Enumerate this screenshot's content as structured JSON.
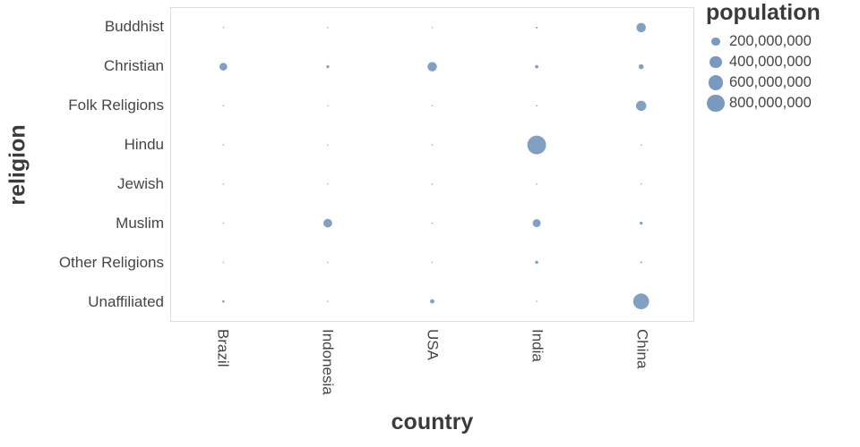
{
  "chart_data": {
    "type": "scatter",
    "subtype": "bubble-punchcard",
    "xlabel": "country",
    "ylabel": "religion",
    "x_categories": [
      "Brazil",
      "Indonesia",
      "USA",
      "India",
      "China"
    ],
    "y_categories": [
      "Buddhist",
      "Christian",
      "Folk Religions",
      "Hindu",
      "Jewish",
      "Muslim",
      "Other Religions",
      "Unaffiliated"
    ],
    "size_legend": {
      "title": "population",
      "values": [
        200000000,
        400000000,
        600000000,
        800000000
      ],
      "labels": [
        "200,000,000",
        "400,000,000",
        "600,000,000",
        "800,000,000"
      ]
    },
    "colors": {
      "point": "#4c78a8",
      "point_opacity": 0.7,
      "axis_text": "#454545",
      "title_text": "#3b3b3b",
      "plot_border": "#dddddd"
    },
    "points": [
      {
        "country": "Brazil",
        "religion": "Buddhist",
        "population": 250000
      },
      {
        "country": "Indonesia",
        "religion": "Buddhist",
        "population": 1720000
      },
      {
        "country": "USA",
        "religion": "Buddhist",
        "population": 3570000
      },
      {
        "country": "India",
        "religion": "Buddhist",
        "population": 9250000
      },
      {
        "country": "China",
        "religion": "Buddhist",
        "population": 244130000
      },
      {
        "country": "Brazil",
        "religion": "Christian",
        "population": 167000000
      },
      {
        "country": "Indonesia",
        "religion": "Christian",
        "population": 23660000
      },
      {
        "country": "USA",
        "religion": "Christian",
        "population": 243060000
      },
      {
        "country": "India",
        "religion": "Christian",
        "population": 31130000
      },
      {
        "country": "China",
        "religion": "Christian",
        "population": 68410000
      },
      {
        "country": "Brazil",
        "religion": "Folk Religions",
        "population": 5540000
      },
      {
        "country": "Indonesia",
        "religion": "Folk Religions",
        "population": 750000
      },
      {
        "country": "USA",
        "religion": "Folk Religions",
        "population": 630000
      },
      {
        "country": "India",
        "religion": "Folk Religions",
        "population": 5840000
      },
      {
        "country": "China",
        "religion": "Folk Religions",
        "population": 294320000
      },
      {
        "country": "Brazil",
        "religion": "Hindu",
        "population": 10000
      },
      {
        "country": "Indonesia",
        "religion": "Hindu",
        "population": 4050000
      },
      {
        "country": "USA",
        "religion": "Hindu",
        "population": 1790000
      },
      {
        "country": "India",
        "religion": "Hindu",
        "population": 973750000
      },
      {
        "country": "China",
        "religion": "Hindu",
        "population": 20000
      },
      {
        "country": "Brazil",
        "religion": "Jewish",
        "population": 110000
      },
      {
        "country": "Indonesia",
        "religion": "Jewish",
        "population": 10000
      },
      {
        "country": "USA",
        "religion": "Jewish",
        "population": 5690000
      },
      {
        "country": "India",
        "religion": "Jewish",
        "population": 10000
      },
      {
        "country": "China",
        "religion": "Jewish",
        "population": 10000
      },
      {
        "country": "Brazil",
        "religion": "Muslim",
        "population": 40000
      },
      {
        "country": "Indonesia",
        "religion": "Muslim",
        "population": 209120000
      },
      {
        "country": "USA",
        "religion": "Muslim",
        "population": 2770000
      },
      {
        "country": "India",
        "religion": "Muslim",
        "population": 176190000
      },
      {
        "country": "China",
        "religion": "Muslim",
        "population": 24690000
      },
      {
        "country": "Brazil",
        "religion": "Other Religions",
        "population": 3040000
      },
      {
        "country": "Indonesia",
        "religion": "Other Religions",
        "population": 340000
      },
      {
        "country": "USA",
        "religion": "Other Religions",
        "population": 1900000
      },
      {
        "country": "India",
        "religion": "Other Religions",
        "population": 27560000
      },
      {
        "country": "China",
        "religion": "Other Religions",
        "population": 9080000
      },
      {
        "country": "Brazil",
        "religion": "Unaffiliated",
        "population": 15410000
      },
      {
        "country": "Indonesia",
        "religion": "Unaffiliated",
        "population": 240000
      },
      {
        "country": "USA",
        "religion": "Unaffiliated",
        "population": 50980000
      },
      {
        "country": "India",
        "religion": "Unaffiliated",
        "population": 870000
      },
      {
        "country": "China",
        "religion": "Unaffiliated",
        "population": 700680000
      }
    ]
  }
}
